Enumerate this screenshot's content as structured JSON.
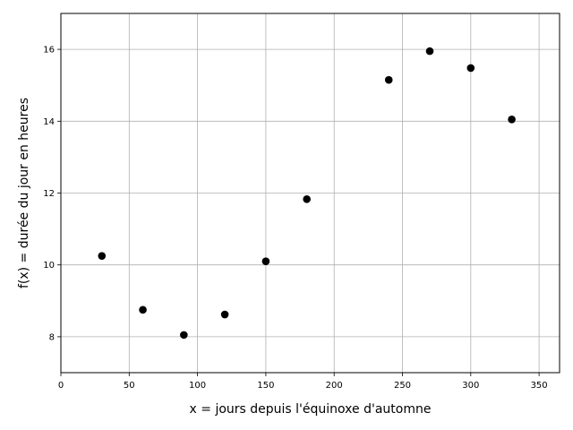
{
  "chart_data": {
    "type": "scatter",
    "title": "",
    "xlabel": "x = jours depuis l'équinoxe d'automne",
    "ylabel": "f(x) = durée du jour en heures",
    "xlim": [
      0,
      365
    ],
    "ylim": [
      7,
      17
    ],
    "xticks": [
      0,
      50,
      100,
      150,
      200,
      250,
      300,
      350
    ],
    "yticks": [
      8,
      10,
      12,
      14,
      16
    ],
    "grid": true,
    "series": [
      {
        "color": "#000000",
        "x": [
          30,
          60,
          90,
          120,
          150,
          180,
          240,
          270,
          300,
          330
        ],
        "y": [
          10.25,
          8.75,
          8.05,
          8.62,
          10.1,
          11.83,
          15.15,
          15.95,
          15.48,
          14.05
        ]
      }
    ]
  }
}
